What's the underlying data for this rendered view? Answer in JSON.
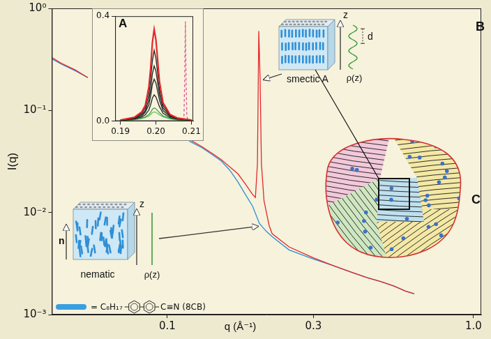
{
  "chart_data": [
    {
      "type": "line",
      "log": true,
      "x_label": "q (Å⁻¹)",
      "y_label": "I(q)",
      "xlim": [
        0.042,
        1.06
      ],
      "ylim": [
        0.001,
        1
      ],
      "xticks": [
        0.1,
        0.3,
        {
          "value": 1,
          "label": "1.0"
        }
      ],
      "yticks": [
        {
          "value": 0.001,
          "label": "10⁻³"
        },
        {
          "value": 0.01,
          "label": "10⁻²"
        },
        {
          "value": 0.1,
          "label": "10⁻¹"
        },
        {
          "value": 1,
          "label": "10⁰"
        }
      ],
      "grid": false,
      "series": [
        {
          "color": "#e4262b",
          "x": [
            0.042,
            0.045,
            0.05,
            0.055,
            0.085,
            0.118,
            0.13,
            0.14,
            0.15,
            0.16,
            0.17,
            0.18,
            0.19,
            0.194,
            0.197,
            0.199,
            0.201,
            0.203,
            0.207,
            0.215,
            0.22,
            0.25,
            0.3,
            0.35,
            0.4,
            0.45,
            0.5,
            0.55,
            0.6,
            0.64
          ],
          "values": [
            0.33,
            0.29,
            0.25,
            0.21,
            null,
            0.052,
            0.044,
            0.038,
            0.033,
            0.028,
            0.024,
            0.019,
            0.015,
            0.014,
            0.03,
            0.6,
            0.2,
            0.03,
            0.013,
            0.0075,
            0.0062,
            0.0046,
            0.0036,
            0.003,
            0.0026,
            0.0023,
            0.0021,
            0.0019,
            0.0017,
            0.0016
          ]
        },
        {
          "color": "#2a8fd8",
          "x": [
            0.042,
            0.045,
            0.05,
            0.055,
            0.085,
            0.118,
            0.13,
            0.14,
            0.15,
            0.16,
            0.17,
            0.18,
            0.19,
            0.2,
            0.21,
            0.22,
            0.25,
            0.3,
            0.35,
            0.4,
            0.45,
            0.5,
            0.55,
            0.6,
            0.64
          ],
          "values": [
            0.32,
            0.285,
            0.245,
            0.21,
            null,
            0.05,
            0.043,
            0.037,
            0.032,
            0.026,
            0.02,
            0.015,
            0.0115,
            0.0078,
            0.0066,
            0.0058,
            0.0043,
            0.0035,
            0.003,
            0.0026,
            0.0023,
            0.0021,
            0.0019,
            0.0017,
            0.0016
          ]
        }
      ]
    },
    {
      "type": "line",
      "title": "A",
      "xlim": [
        0.1885,
        0.2105
      ],
      "ylim": [
        0,
        0.4
      ],
      "xticks": [
        0.19,
        {
          "value": 0.2,
          "label": "0.20"
        },
        0.21
      ],
      "yticks": [
        {
          "value": 0,
          "label": "0.0"
        },
        0.4
      ],
      "grid": false,
      "series": [
        {
          "color": "#e4262b",
          "x": [
            0.19,
            0.194,
            0.196,
            0.197,
            0.198,
            0.1985,
            0.199,
            0.1995,
            0.2,
            0.201,
            0.202,
            0.204,
            0.206,
            0.21
          ],
          "values": [
            0.004,
            0.015,
            0.035,
            0.06,
            0.13,
            0.2,
            0.3,
            0.35,
            0.31,
            0.15,
            0.07,
            0.025,
            0.012,
            0.004
          ]
        },
        {
          "color": "#222222",
          "x": [
            0.19,
            0.194,
            0.196,
            0.197,
            0.198,
            0.1985,
            0.199,
            0.1995,
            0.2,
            0.201,
            0.202,
            0.204,
            0.206,
            0.21
          ],
          "values": [
            0.004,
            0.013,
            0.03,
            0.05,
            0.1,
            0.16,
            0.23,
            0.27,
            0.24,
            0.12,
            0.06,
            0.022,
            0.011,
            0.004
          ]
        },
        {
          "color": "#222222",
          "x": [
            0.19,
            0.194,
            0.196,
            0.197,
            0.198,
            0.1985,
            0.199,
            0.1995,
            0.2,
            0.201,
            0.202,
            0.204,
            0.206,
            0.21
          ],
          "values": [
            0.004,
            0.012,
            0.025,
            0.04,
            0.08,
            0.12,
            0.18,
            0.21,
            0.19,
            0.1,
            0.05,
            0.02,
            0.01,
            0.004
          ]
        },
        {
          "color": "#222222",
          "x": [
            0.19,
            0.194,
            0.196,
            0.197,
            0.198,
            0.1985,
            0.199,
            0.1995,
            0.2,
            0.201,
            0.202,
            0.204,
            0.206,
            0.21
          ],
          "values": [
            0.003,
            0.01,
            0.02,
            0.034,
            0.062,
            0.095,
            0.14,
            0.16,
            0.145,
            0.08,
            0.04,
            0.017,
            0.009,
            0.003
          ]
        },
        {
          "color": "#222222",
          "x": [
            0.19,
            0.194,
            0.196,
            0.197,
            0.198,
            0.1985,
            0.199,
            0.1995,
            0.2,
            0.201,
            0.202,
            0.204,
            0.206,
            0.21
          ],
          "values": [
            0.003,
            0.008,
            0.015,
            0.024,
            0.042,
            0.062,
            0.088,
            0.1,
            0.092,
            0.055,
            0.03,
            0.013,
            0.007,
            0.003
          ]
        },
        {
          "color": "#3aa63a",
          "x": [
            0.19,
            0.194,
            0.196,
            0.197,
            0.198,
            0.1985,
            0.199,
            0.1995,
            0.2,
            0.201,
            0.202,
            0.204,
            0.206,
            0.21
          ],
          "values": [
            0.002,
            0.006,
            0.011,
            0.016,
            0.025,
            0.033,
            0.045,
            0.05,
            0.047,
            0.032,
            0.02,
            0.01,
            0.005,
            0.002
          ]
        },
        {
          "color": "#72c46a",
          "x": [
            0.19,
            0.194,
            0.196,
            0.197,
            0.198,
            0.1985,
            0.199,
            0.1995,
            0.2,
            0.201,
            0.202,
            0.204,
            0.206,
            0.21
          ],
          "values": [
            0.002,
            0.005,
            0.009,
            0.013,
            0.019,
            0.025,
            0.032,
            0.035,
            0.033,
            0.024,
            0.016,
            0.008,
            0.004,
            0.002
          ]
        },
        {
          "color": "#e0559a",
          "line_style": "dashed",
          "x": [
            0.2075,
            0.2079,
            0.2081,
            0.2083,
            0.2085,
            0.2087,
            0.2091
          ],
          "values": [
            0,
            0.02,
            0.15,
            0.38,
            0.15,
            0.02,
            0
          ]
        }
      ]
    }
  ],
  "diagrams": {
    "smectic": {
      "panel": "B",
      "label": "smectic A",
      "axis": "z",
      "spacing": "d",
      "profile": "ρ(z)"
    },
    "nematic": {
      "label": "nematic",
      "axis": "z",
      "director": "n",
      "profile": "ρ(z)"
    },
    "domains": {
      "panel": "C"
    },
    "molecule": {
      "prefix": "=",
      "chain": "C₈H₁₇",
      "head": "C≡N",
      "name": "(8CB)"
    }
  }
}
